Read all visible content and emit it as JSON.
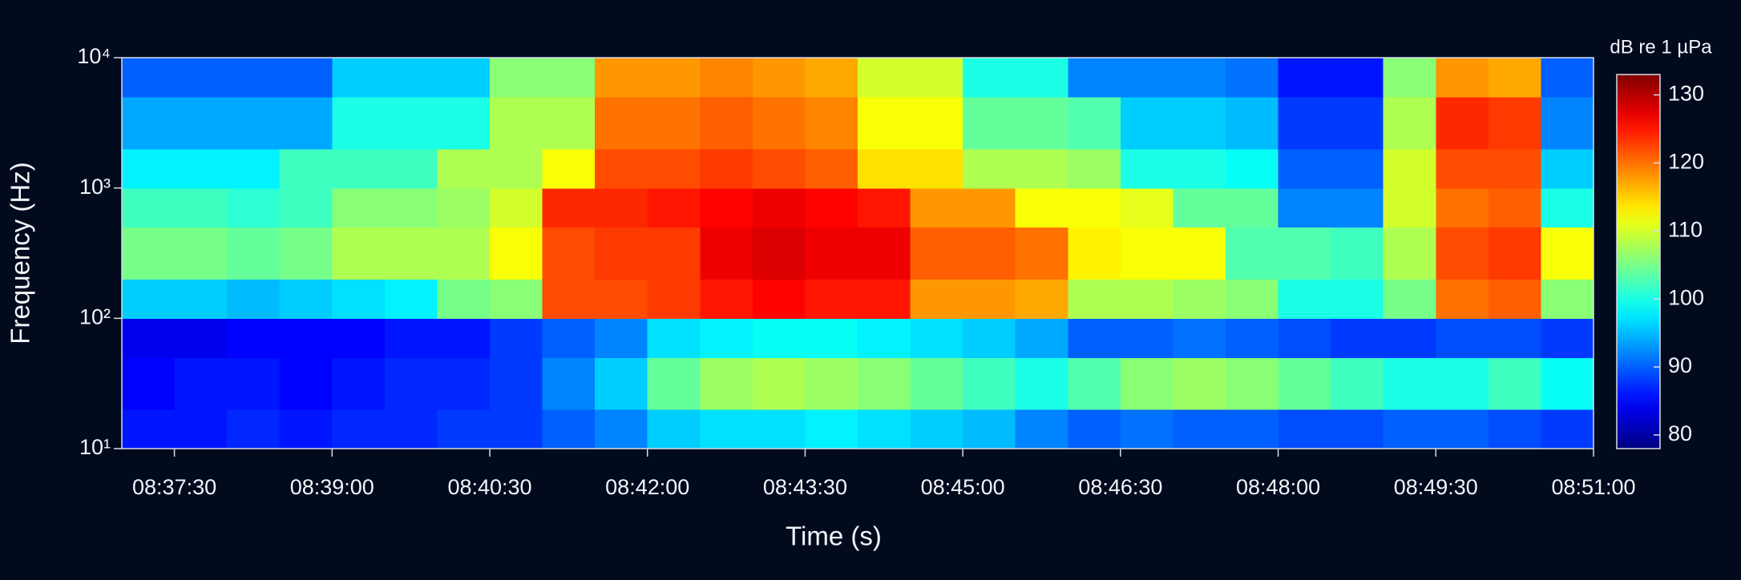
{
  "chart_data": {
    "type": "heatmap",
    "xlabel": "Time (s)",
    "ylabel": "Frequency (Hz)",
    "colorbar_label": "dB re 1 µPa",
    "colormap": "jet",
    "ylog": true,
    "xlim": [
      "08:37:00",
      "08:51:00"
    ],
    "xticks": [
      "08:37:30",
      "08:39:00",
      "08:40:30",
      "08:42:00",
      "08:43:30",
      "08:45:00",
      "08:46:30",
      "08:48:00",
      "08:49:30",
      "08:51:00"
    ],
    "ylim": [
      10,
      10000
    ],
    "yticks": [
      {
        "value": 10,
        "label": "10¹"
      },
      {
        "value": 100,
        "label": "10²"
      },
      {
        "value": 1000,
        "label": "10³"
      },
      {
        "value": 10000,
        "label": "10⁴"
      }
    ],
    "zlim": [
      78,
      133
    ],
    "zticks": [
      80,
      90,
      100,
      110,
      120,
      130
    ],
    "x": [
      "08:37:00",
      "08:37:30",
      "08:38:00",
      "08:38:30",
      "08:39:00",
      "08:39:30",
      "08:40:00",
      "08:40:30",
      "08:41:00",
      "08:41:30",
      "08:42:00",
      "08:42:30",
      "08:43:00",
      "08:43:30",
      "08:44:00",
      "08:44:30",
      "08:45:00",
      "08:45:30",
      "08:46:00",
      "08:46:30",
      "08:47:00",
      "08:47:30",
      "08:48:00",
      "08:48:30",
      "08:49:00",
      "08:49:30",
      "08:50:00",
      "08:50:30"
    ],
    "y": [
      10,
      20,
      50,
      100,
      200,
      500,
      1000,
      2000,
      5000
    ],
    "z": [
      [
        86,
        86,
        87,
        86,
        87,
        87,
        88,
        88,
        90,
        92,
        96,
        97,
        97,
        98,
        97,
        96,
        95,
        92,
        90,
        91,
        90,
        90,
        89,
        89,
        90,
        90,
        89,
        88
      ],
      [
        85,
        86,
        86,
        85,
        86,
        87,
        87,
        88,
        92,
        96,
        104,
        107,
        108,
        107,
        106,
        104,
        102,
        100,
        103,
        106,
        107,
        106,
        104,
        102,
        100,
        100,
        102,
        99
      ],
      [
        84,
        84,
        85,
        85,
        85,
        86,
        86,
        88,
        90,
        92,
        97,
        98,
        99,
        99,
        98,
        97,
        96,
        94,
        90,
        90,
        91,
        90,
        89,
        88,
        88,
        89,
        89,
        88
      ],
      [
        96,
        96,
        95,
        96,
        97,
        98,
        105,
        106,
        122,
        122,
        123,
        125,
        126,
        125,
        125,
        118,
        118,
        117,
        108,
        108,
        107,
        106,
        100,
        100,
        105,
        120,
        121,
        106
      ],
      [
        105,
        105,
        104,
        105,
        108,
        108,
        108,
        112,
        122,
        123,
        123,
        127,
        128,
        127,
        127,
        121,
        121,
        120,
        113,
        112,
        112,
        103,
        103,
        102,
        108,
        122,
        123,
        112
      ],
      [
        102,
        102,
        101,
        102,
        106,
        106,
        107,
        110,
        124,
        124,
        125,
        126,
        127,
        126,
        125,
        118,
        118,
        112,
        112,
        111,
        104,
        104,
        92,
        92,
        110,
        120,
        121,
        100
      ],
      [
        98,
        98,
        98,
        102,
        102,
        102,
        108,
        108,
        112,
        122,
        122,
        123,
        122,
        121,
        114,
        114,
        108,
        108,
        107,
        100,
        100,
        99,
        90,
        90,
        110,
        122,
        122,
        96
      ],
      [
        94,
        94,
        94,
        94,
        100,
        100,
        100,
        108,
        108,
        120,
        120,
        121,
        120,
        119,
        112,
        112,
        104,
        104,
        103,
        96,
        96,
        95,
        88,
        88,
        108,
        124,
        123,
        92
      ],
      [
        90,
        90,
        90,
        90,
        96,
        96,
        96,
        106,
        106,
        118,
        118,
        119,
        118,
        117,
        110,
        110,
        100,
        100,
        92,
        92,
        92,
        91,
        86,
        86,
        106,
        118,
        117,
        90
      ]
    ]
  }
}
